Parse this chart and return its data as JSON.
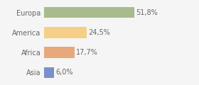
{
  "categories": [
    "Europa",
    "America",
    "Africa",
    "Asia"
  ],
  "values": [
    51.8,
    24.5,
    17.7,
    6.0
  ],
  "labels": [
    "51,8%",
    "24,5%",
    "17,7%",
    "6,0%"
  ],
  "bar_colors": [
    "#a8bb8a",
    "#f5cf85",
    "#e8a87c",
    "#7b8fcc"
  ],
  "background_color": "#f5f5f5",
  "xlim": [
    0,
    75
  ],
  "bar_height": 0.55,
  "label_fontsize": 7,
  "category_fontsize": 7
}
